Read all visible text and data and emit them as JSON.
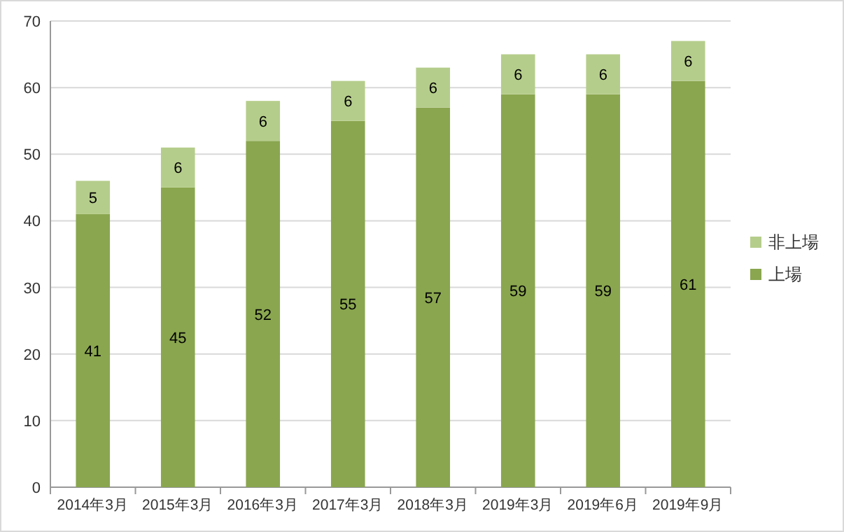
{
  "chart_data": {
    "type": "bar",
    "stacked": true,
    "categories": [
      "2014年3月",
      "2015年3月",
      "2016年3月",
      "2017年3月",
      "2018年3月",
      "2019年3月",
      "2019年6月",
      "2019年9月"
    ],
    "series": [
      {
        "name": "上場",
        "color": "#8aa64f",
        "values": [
          41,
          45,
          52,
          55,
          57,
          59,
          59,
          61
        ]
      },
      {
        "name": "非上場",
        "color": "#b5cd8b",
        "values": [
          5,
          6,
          6,
          6,
          6,
          6,
          6,
          6
        ]
      }
    ],
    "ylim": [
      0,
      70
    ],
    "yticks": [
      0,
      10,
      20,
      30,
      40,
      50,
      60,
      70
    ],
    "grid": "y",
    "legend": "right",
    "data_labels": true
  }
}
